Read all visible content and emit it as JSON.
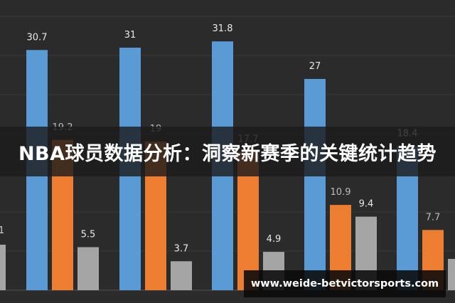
{
  "chart_data": {
    "type": "bar",
    "title": "",
    "xlabel": "",
    "ylabel": "",
    "ylim": [
      0,
      35
    ],
    "grid": true,
    "categories": [
      "",
      "",
      "",
      "",
      ""
    ],
    "series": [
      {
        "color": "#5b9bd5",
        "values": [
          30.7,
          31,
          31.8,
          27,
          18.4
        ]
      },
      {
        "color": "#ed7d31",
        "values": [
          19.2,
          19,
          17.7,
          10.9,
          7.7
        ]
      },
      {
        "color": "#a5a5a5",
        "values": [
          5.5,
          3.7,
          4.9,
          9.4,
          4
        ]
      }
    ],
    "partial_left_value": "1"
  },
  "overlay": {
    "title": "NBA球员数据分析：洞察新赛季的关键统计趋势",
    "url": "www.weide-betvictorsports.com"
  }
}
